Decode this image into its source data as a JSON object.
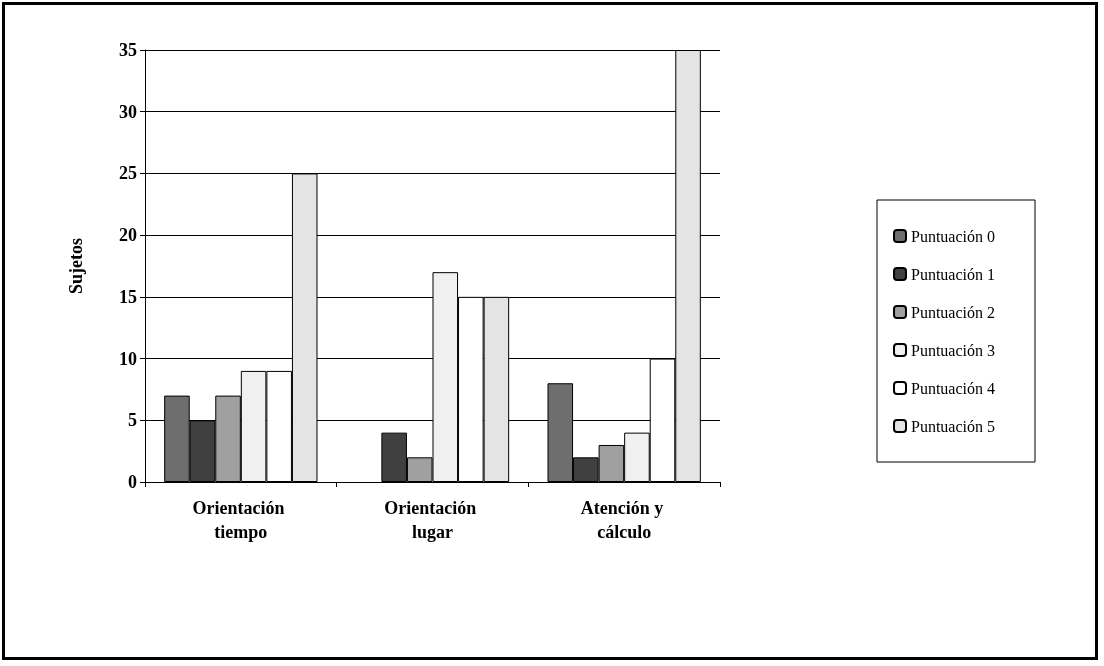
{
  "chart_data": {
    "type": "bar",
    "ylabel": "Sujetos",
    "categories": [
      "Orientación tiempo",
      "Orientación lugar",
      "Atención y cálculo"
    ],
    "series": [
      {
        "name": "Puntuación 0",
        "color": "#6e6e6e",
        "values": [
          7,
          0,
          8
        ]
      },
      {
        "name": "Puntuación 1",
        "color": "#404040",
        "values": [
          5,
          4,
          2
        ]
      },
      {
        "name": "Puntuación 2",
        "color": "#a0a0a0",
        "values": [
          7,
          2,
          3
        ]
      },
      {
        "name": "Puntuación 3",
        "color": "#f0f0f0",
        "values": [
          9,
          17,
          4
        ]
      },
      {
        "name": "Puntuación 4",
        "color": "#ffffff",
        "values": [
          9,
          15,
          10
        ]
      },
      {
        "name": "Puntuación 5",
        "color": "#e4e4e4",
        "values": [
          25,
          15,
          35
        ]
      }
    ],
    "ylim": [
      0,
      35
    ],
    "yticks": [
      0,
      5,
      10,
      15,
      20,
      25,
      30,
      35
    ],
    "grid": "y",
    "legend": "right"
  }
}
